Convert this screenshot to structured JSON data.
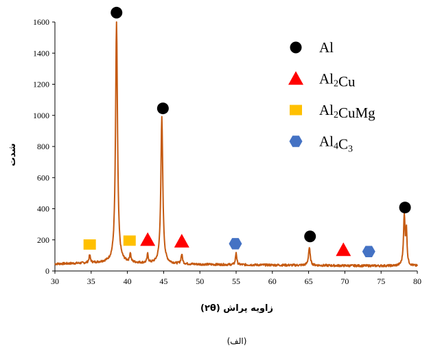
{
  "chart_data": {
    "type": "line",
    "xlabel": "زاویه پراش (۲θ)",
    "ylabel": "شدت",
    "caption": "(الف)",
    "xlim": [
      30,
      80
    ],
    "ylim": [
      0,
      1600
    ],
    "x_ticks": [
      30,
      35,
      40,
      45,
      50,
      55,
      60,
      65,
      70,
      75,
      80
    ],
    "y_ticks": [
      0,
      200,
      400,
      600,
      800,
      1000,
      1200,
      1400,
      1600
    ],
    "grid": false,
    "line_color": "#c55a11",
    "background_level": 45,
    "baseline_points": [
      {
        "x": 30,
        "y": 45
      },
      {
        "x": 34,
        "y": 50
      },
      {
        "x": 37,
        "y": 55
      },
      {
        "x": 40,
        "y": 52
      },
      {
        "x": 43,
        "y": 48
      },
      {
        "x": 50,
        "y": 42
      },
      {
        "x": 55,
        "y": 40
      },
      {
        "x": 60,
        "y": 38
      },
      {
        "x": 65,
        "y": 36
      },
      {
        "x": 70,
        "y": 34
      },
      {
        "x": 75,
        "y": 33
      },
      {
        "x": 80,
        "y": 32
      }
    ],
    "peaks": [
      {
        "x": 34.8,
        "y": 100,
        "width": 0.12
      },
      {
        "x": 38.5,
        "y": 1600,
        "width": 0.16
      },
      {
        "x": 40.4,
        "y": 110,
        "width": 0.1
      },
      {
        "x": 42.8,
        "y": 105,
        "width": 0.1
      },
      {
        "x": 44.75,
        "y": 985,
        "width": 0.16
      },
      {
        "x": 47.5,
        "y": 105,
        "width": 0.12
      },
      {
        "x": 55.0,
        "y": 120,
        "width": 0.1
      },
      {
        "x": 65.1,
        "y": 150,
        "width": 0.14
      },
      {
        "x": 78.2,
        "y": 350,
        "width": 0.13
      },
      {
        "x": 78.5,
        "y": 240,
        "width": 0.1
      }
    ],
    "markers": [
      {
        "phase": "Al",
        "x": 38.5,
        "y": 1660
      },
      {
        "phase": "Al",
        "x": 44.9,
        "y": 1045
      },
      {
        "phase": "Al",
        "x": 65.2,
        "y": 222
      },
      {
        "phase": "Al",
        "x": 78.3,
        "y": 408
      },
      {
        "phase": "Al2Cu",
        "x": 42.8,
        "y": 200
      },
      {
        "phase": "Al2Cu",
        "x": 47.5,
        "y": 190
      },
      {
        "phase": "Al2Cu",
        "x": 69.8,
        "y": 135
      },
      {
        "phase": "Al2CuMg",
        "x": 34.8,
        "y": 170
      },
      {
        "phase": "Al2CuMg",
        "x": 40.3,
        "y": 195
      },
      {
        "phase": "Al4C3",
        "x": 54.9,
        "y": 175
      },
      {
        "phase": "Al4C3",
        "x": 73.3,
        "y": 125
      }
    ],
    "legend": [
      {
        "phase": "Al",
        "label": "Al",
        "shape": "circle",
        "color": "#000000"
      },
      {
        "phase": "Al2Cu",
        "label": "Al2Cu",
        "shape": "triangle",
        "color": "#ff0000"
      },
      {
        "phase": "Al2CuMg",
        "label": "Al2CuMg",
        "shape": "square",
        "color": "#ffc000"
      },
      {
        "phase": "Al4C3",
        "label": "Al4C3",
        "shape": "hexagon",
        "color": "#4472c4"
      }
    ],
    "legend_position": "top-right"
  }
}
